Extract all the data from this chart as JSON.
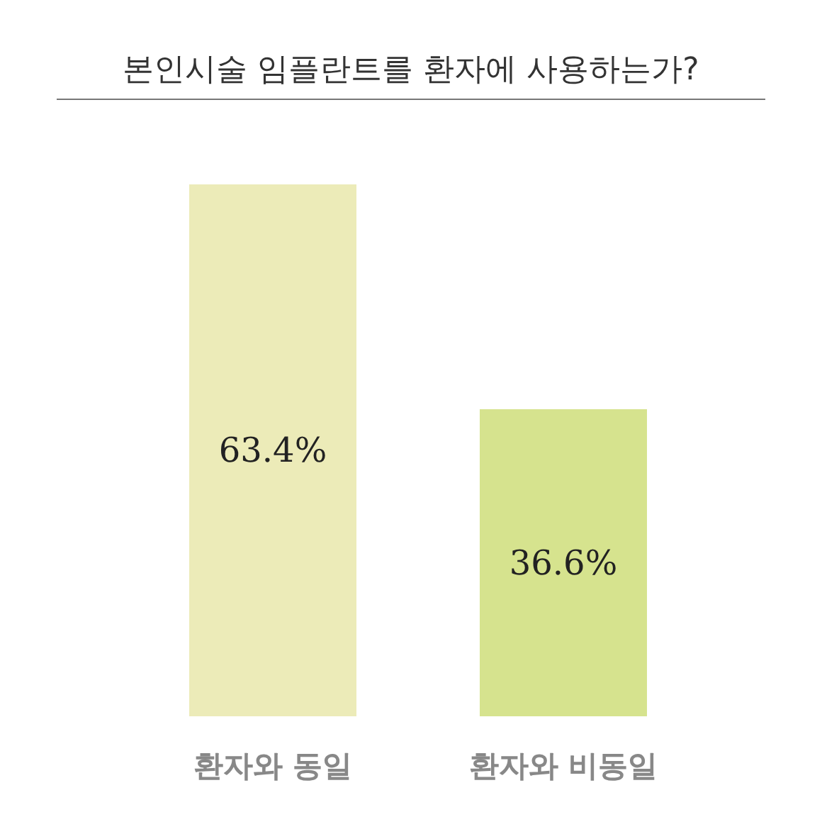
{
  "chart_data": {
    "type": "bar",
    "title": "본인시술 임플란트를 환자에 사용하는가?",
    "categories": [
      "환자와 동일",
      "환자와 비동일"
    ],
    "values": [
      63.4,
      36.6
    ],
    "colors": [
      "#ecebb8",
      "#d6e38e"
    ],
    "value_labels": [
      "63.4%",
      "36.6%"
    ]
  }
}
